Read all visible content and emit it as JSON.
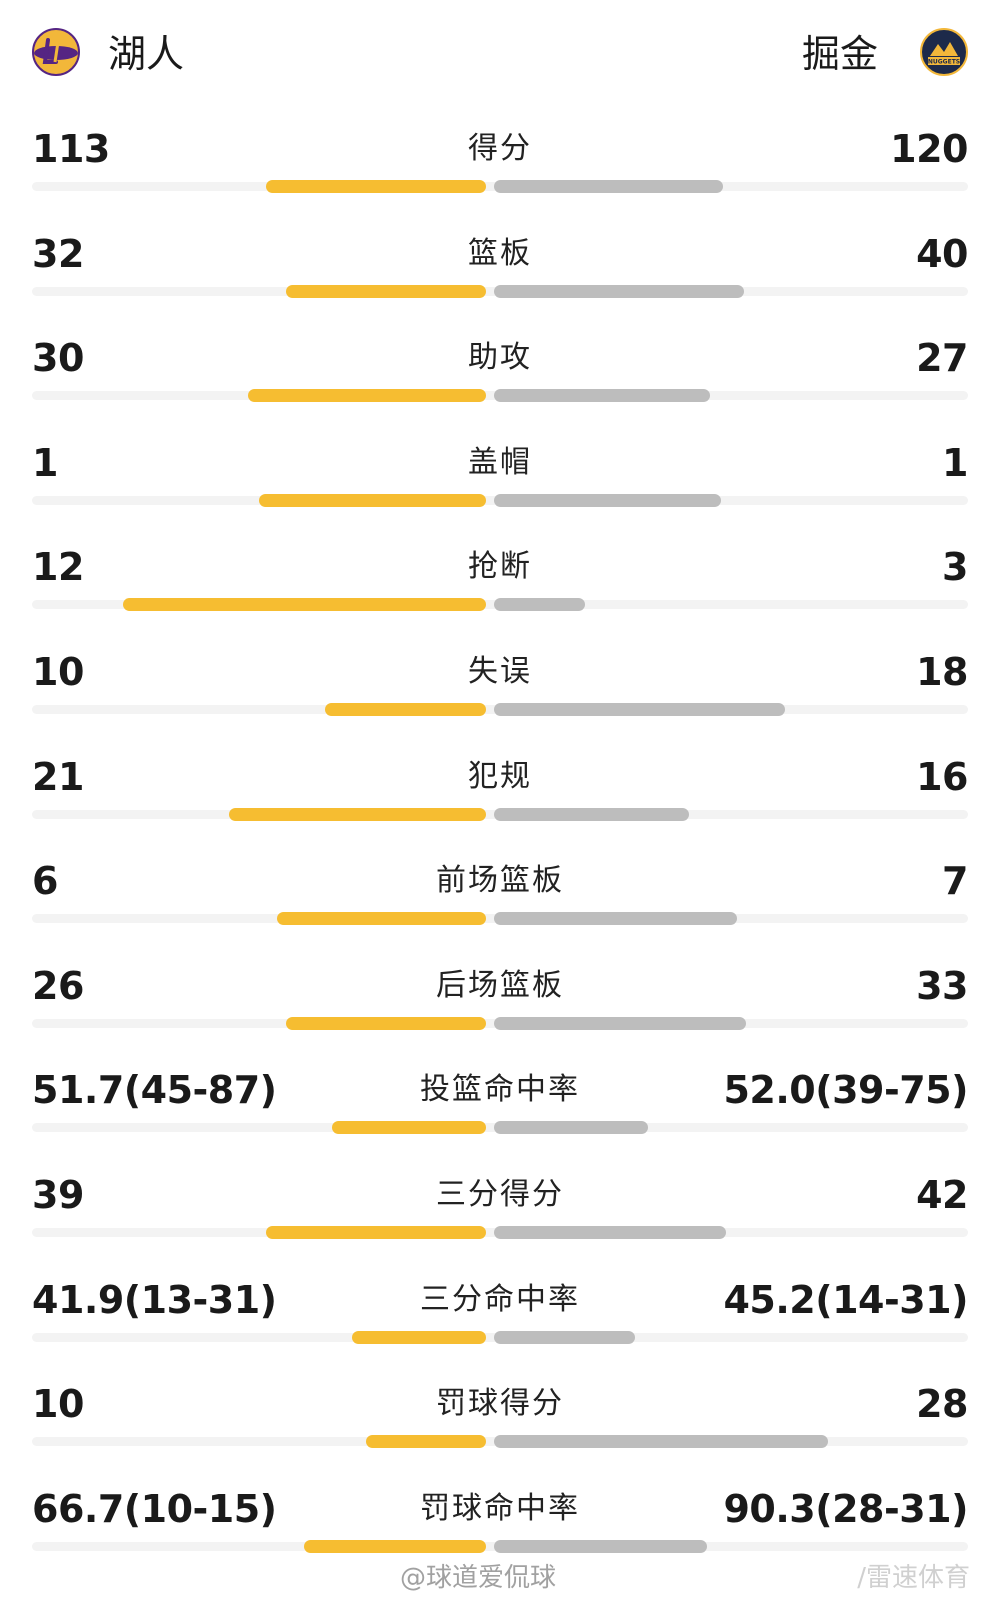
{
  "header": {
    "home_team": "湖人",
    "away_team": "掘金",
    "home_logo_icon": "lakers-logo-icon",
    "away_logo_icon": "nuggets-logo-icon",
    "away_logo_text": "NUGGETS"
  },
  "colors": {
    "home_bar": "#f6bd31",
    "away_bar": "#bdbdbd",
    "track": "#f3f3f3"
  },
  "stats": [
    {
      "label": "得分",
      "home": "113",
      "away": "120",
      "home_frac": 0.485,
      "away_frac": 0.505
    },
    {
      "label": "篮板",
      "home": "32",
      "away": "40",
      "home_frac": 0.44,
      "away_frac": 0.55
    },
    {
      "label": "助攻",
      "home": "30",
      "away": "27",
      "home_frac": 0.525,
      "away_frac": 0.475
    },
    {
      "label": "盖帽",
      "home": "1",
      "away": "1",
      "home_frac": 0.5,
      "away_frac": 0.5
    },
    {
      "label": "抢断",
      "home": "12",
      "away": "3",
      "home_frac": 0.8,
      "away_frac": 0.2
    },
    {
      "label": "失误",
      "home": "10",
      "away": "18",
      "home_frac": 0.355,
      "away_frac": 0.64
    },
    {
      "label": "犯规",
      "home": "21",
      "away": "16",
      "home_frac": 0.565,
      "away_frac": 0.43
    },
    {
      "label": "前场篮板",
      "home": "6",
      "away": "7",
      "home_frac": 0.46,
      "away_frac": 0.535
    },
    {
      "label": "后场篮板",
      "home": "26",
      "away": "33",
      "home_frac": 0.44,
      "away_frac": 0.555
    },
    {
      "label": "投篮命中率",
      "home": "51.7(45-87)",
      "away": "52.0(39-75)",
      "home_frac": 0.34,
      "away_frac": 0.34
    },
    {
      "label": "三分得分",
      "home": "39",
      "away": "42",
      "home_frac": 0.485,
      "away_frac": 0.51
    },
    {
      "label": "三分命中率",
      "home": "41.9(13-31)",
      "away": "45.2(14-31)",
      "home_frac": 0.295,
      "away_frac": 0.31
    },
    {
      "label": "罚球得分",
      "home": "10",
      "away": "28",
      "home_frac": 0.265,
      "away_frac": 0.735
    },
    {
      "label": "罚球命中率",
      "home": "66.7(10-15)",
      "away": "90.3(28-31)",
      "home_frac": 0.4,
      "away_frac": 0.47
    }
  ],
  "watermarks": {
    "weibo": "@球道爱侃球",
    "corner": "/雷速体育"
  }
}
